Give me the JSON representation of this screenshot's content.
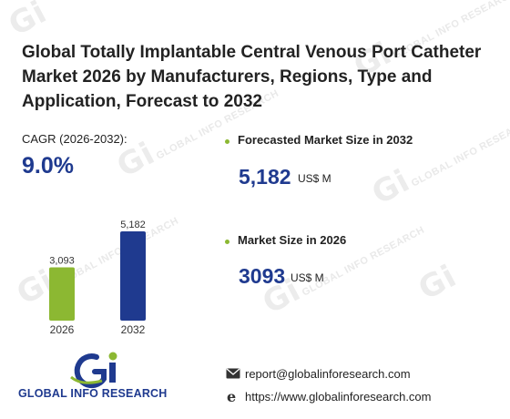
{
  "header": {
    "title_line1": "Global Totally Implantable Central Venous Port Catheter",
    "title_line2": "Market 2026 by Manufacturers, Regions, Type and",
    "title_line3": "Application, Forecast to 2032"
  },
  "cagr": {
    "label": "CAGR (2026-2032):",
    "value": "9.0%"
  },
  "chart_data": {
    "type": "bar",
    "categories": [
      "2026",
      "2032"
    ],
    "values": [
      3093,
      5182
    ],
    "data_labels": [
      "3,093",
      "5,182"
    ],
    "colors": [
      "#8cb832",
      "#1f3a8f"
    ],
    "ylim": [
      0,
      5182
    ],
    "grid": false,
    "title": "",
    "xlabel": "",
    "ylabel": ""
  },
  "forecast": {
    "label": "Forecasted Market Size in 2032",
    "value": "5,182",
    "unit": "US$ M"
  },
  "market": {
    "label": "Market Size in 2026",
    "value": "3093",
    "unit": "US$ M"
  },
  "logo": {
    "text": "GLOBAL INFO RESEARCH",
    "icon": "gir-logo-icon"
  },
  "contact": {
    "email": "report@globalinforesearch.com",
    "website": "https://www.globalinforesearch.com",
    "email_icon": "envelope-icon",
    "web_icon": "globe-icon"
  },
  "watermark": {
    "text": "GLOBAL INFO RESEARCH"
  },
  "colors": {
    "accent": "#1f3a8f",
    "green": "#8cb832"
  }
}
